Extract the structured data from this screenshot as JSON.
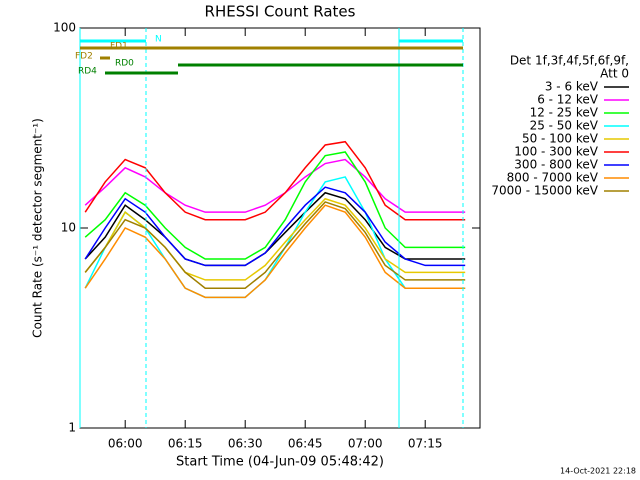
{
  "chart_data": {
    "type": "line",
    "title": "RHESSI Count Rates",
    "x_label": "Start Time (04-Jun-09 05:48:42)",
    "y_label": "Count Rate (s⁻¹ detector segment⁻¹)",
    "log_y": true,
    "x": [
      350,
      355,
      360,
      365,
      370,
      375,
      380,
      385,
      390,
      395,
      400,
      405,
      410,
      415,
      420,
      425,
      430,
      435,
      440,
      445
    ],
    "xlim": [
      348.7,
      448.7
    ],
    "xticks": [
      {
        "value": 360,
        "label": "06:00"
      },
      {
        "value": 375,
        "label": "06:15"
      },
      {
        "value": 390,
        "label": "06:30"
      },
      {
        "value": 405,
        "label": "06:45"
      },
      {
        "value": 420,
        "label": "07:00"
      },
      {
        "value": 435,
        "label": "07:15"
      }
    ],
    "ylim": [
      1,
      100
    ],
    "yticks": [
      1,
      10,
      100
    ],
    "legend_title": [
      "Det 1f,3f,4f,5f,6f,9f,",
      "Att 0"
    ],
    "series": [
      {
        "name": "3 - 6 keV",
        "color": "#000000",
        "values": [
          7,
          9,
          13,
          11,
          9,
          7,
          6.5,
          6.5,
          6.5,
          7.5,
          9.5,
          12,
          15,
          14,
          11,
          8,
          7,
          7,
          7,
          7
        ]
      },
      {
        "name": "6 - 12 keV",
        "color": "#ff00ff",
        "values": [
          13,
          16,
          20,
          18,
          15,
          13,
          12,
          12,
          12,
          13,
          15,
          18,
          21,
          22,
          18,
          14,
          12,
          12,
          12,
          12
        ]
      },
      {
        "name": "12 - 25 keV",
        "color": "#00ff00",
        "values": [
          9,
          11,
          15,
          13,
          10,
          8,
          7,
          7,
          7,
          8,
          11,
          17,
          23,
          24,
          17,
          10,
          8,
          8,
          8,
          8
        ]
      },
      {
        "name": "25 - 50 keV",
        "color": "#00ffff",
        "values": [
          5,
          8,
          12,
          10,
          7,
          5,
          4.5,
          4.5,
          4.5,
          5.5,
          8,
          12,
          17,
          18,
          12,
          7,
          5,
          5,
          5,
          5
        ]
      },
      {
        "name": "50 - 100 keV",
        "color": "#e6c800",
        "values": [
          6,
          8,
          12,
          10,
          8,
          6,
          5.5,
          5.5,
          5.5,
          6.5,
          8.5,
          11,
          14,
          13,
          10,
          7,
          6,
          6,
          6,
          6
        ]
      },
      {
        "name": "100 - 300 keV",
        "color": "#ff0000",
        "values": [
          12,
          17,
          22,
          20,
          15,
          12,
          11,
          11,
          11,
          12,
          15,
          20,
          26,
          27,
          20,
          13,
          11,
          11,
          11,
          11
        ]
      },
      {
        "name": "300 - 800 keV",
        "color": "#0000ff",
        "values": [
          7,
          10,
          14,
          12,
          9,
          7,
          6.5,
          6.5,
          6.5,
          7.5,
          10,
          13,
          16,
          15,
          12,
          8.5,
          7,
          6.5,
          6.5,
          6.5
        ]
      },
      {
        "name": "800 - 7000 keV",
        "color": "#ff8c00",
        "values": [
          5,
          7,
          10,
          9,
          7,
          5,
          4.5,
          4.5,
          4.5,
          5.5,
          7.5,
          10,
          13,
          12,
          9,
          6,
          5,
          5,
          5,
          5
        ]
      },
      {
        "name": "7000 - 15000 keV",
        "color": "#a08000",
        "values": [
          6,
          8,
          11,
          10,
          8,
          6,
          5,
          5,
          5,
          6,
          8,
          10.5,
          13.5,
          12.5,
          9.5,
          6.5,
          5.5,
          5.5,
          5.5,
          5.5
        ]
      }
    ],
    "vlines": {
      "color": "#00ffff",
      "lines": [
        {
          "x": 348.7,
          "dashed": false
        },
        {
          "x": 365.2,
          "dashed": true
        },
        {
          "x": 428.45,
          "dashed": false
        },
        {
          "x": 444.45,
          "dashed": true
        }
      ]
    },
    "flags": [
      {
        "label": "N",
        "color": "#00ffff",
        "segments": [
          [
            348.7,
            365.2
          ],
          [
            428.45,
            444.45
          ]
        ]
      },
      {
        "label": "FD1",
        "color": "#a08000",
        "segments": [
          [
            348.7,
            444.45
          ]
        ]
      },
      {
        "label": "FD2",
        "color": "#a08000",
        "segments": [
          [
            353.7,
            356.2
          ]
        ]
      },
      {
        "label": "RD0",
        "color": "#008000",
        "segments": [
          [
            373.2,
            444.45
          ]
        ]
      },
      {
        "label": "RD4",
        "color": "#008000",
        "segments": [
          [
            354.95,
            373.2
          ]
        ]
      }
    ],
    "footer": "14-Oct-2021 22:18"
  }
}
